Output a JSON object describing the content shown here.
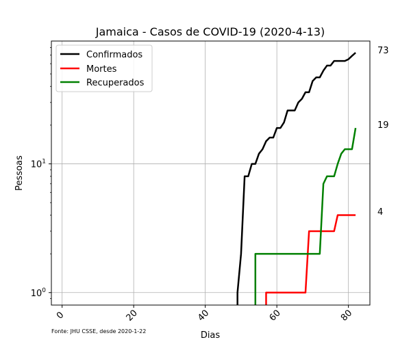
{
  "chart_data": {
    "type": "line",
    "title": "Jamaica - Casos de COVID-19 (2020-4-13)",
    "xlabel": "Dias",
    "ylabel": "Pessoas",
    "yscale": "log",
    "xlim": [
      -3,
      86
    ],
    "ylim": [
      0.8,
      90
    ],
    "xticks": [
      0,
      20,
      40,
      60,
      80
    ],
    "yticks": [
      {
        "value": 1,
        "base": "10",
        "exp": "0"
      },
      {
        "value": 10,
        "base": "10",
        "exp": "1"
      }
    ],
    "grid": true,
    "legend_position": "upper-left",
    "source_note": "Fonte: JHU CSSE, desde 2020-1-22",
    "end_labels": [
      "73",
      "19",
      "4"
    ],
    "series": [
      {
        "name": "Confirmados",
        "color": "#000000",
        "points": [
          [
            49,
            0.5
          ],
          [
            49,
            1
          ],
          [
            50,
            2
          ],
          [
            51,
            8
          ],
          [
            52,
            8
          ],
          [
            53,
            10
          ],
          [
            54,
            10
          ],
          [
            55,
            12
          ],
          [
            56,
            13
          ],
          [
            57,
            15
          ],
          [
            58,
            16
          ],
          [
            59,
            16
          ],
          [
            60,
            19
          ],
          [
            61,
            19
          ],
          [
            62,
            21
          ],
          [
            63,
            26
          ],
          [
            64,
            26
          ],
          [
            65,
            26
          ],
          [
            66,
            30
          ],
          [
            67,
            32
          ],
          [
            68,
            36
          ],
          [
            69,
            36
          ],
          [
            70,
            44
          ],
          [
            71,
            47
          ],
          [
            72,
            47
          ],
          [
            73,
            53
          ],
          [
            74,
            58
          ],
          [
            75,
            58
          ],
          [
            76,
            63
          ],
          [
            77,
            63
          ],
          [
            78,
            63
          ],
          [
            79,
            63
          ],
          [
            80,
            65
          ],
          [
            81,
            69
          ],
          [
            82,
            73
          ]
        ]
      },
      {
        "name": "Mortes",
        "color": "#ff0000",
        "points": [
          [
            57,
            0.5
          ],
          [
            57,
            1
          ],
          [
            58,
            1
          ],
          [
            59,
            1
          ],
          [
            60,
            1
          ],
          [
            61,
            1
          ],
          [
            62,
            1
          ],
          [
            63,
            1
          ],
          [
            64,
            1
          ],
          [
            65,
            1
          ],
          [
            66,
            1
          ],
          [
            67,
            1
          ],
          [
            68,
            1
          ],
          [
            69,
            3
          ],
          [
            70,
            3
          ],
          [
            71,
            3
          ],
          [
            72,
            3
          ],
          [
            73,
            3
          ],
          [
            74,
            3
          ],
          [
            75,
            3
          ],
          [
            76,
            3
          ],
          [
            77,
            4
          ],
          [
            78,
            4
          ],
          [
            79,
            4
          ],
          [
            80,
            4
          ],
          [
            81,
            4
          ],
          [
            82,
            4
          ]
        ]
      },
      {
        "name": "Recuperados",
        "color": "#008000",
        "points": [
          [
            54,
            0.5
          ],
          [
            54,
            2
          ],
          [
            55,
            2
          ],
          [
            56,
            2
          ],
          [
            57,
            2
          ],
          [
            58,
            2
          ],
          [
            59,
            2
          ],
          [
            60,
            2
          ],
          [
            61,
            2
          ],
          [
            62,
            2
          ],
          [
            63,
            2
          ],
          [
            64,
            2
          ],
          [
            65,
            2
          ],
          [
            66,
            2
          ],
          [
            67,
            2
          ],
          [
            68,
            2
          ],
          [
            69,
            2
          ],
          [
            70,
            2
          ],
          [
            71,
            2
          ],
          [
            72,
            2
          ],
          [
            73,
            7
          ],
          [
            74,
            8
          ],
          [
            75,
            8
          ],
          [
            76,
            8
          ],
          [
            77,
            10
          ],
          [
            78,
            12
          ],
          [
            79,
            13
          ],
          [
            80,
            13
          ],
          [
            81,
            13
          ],
          [
            82,
            19
          ]
        ]
      }
    ]
  }
}
